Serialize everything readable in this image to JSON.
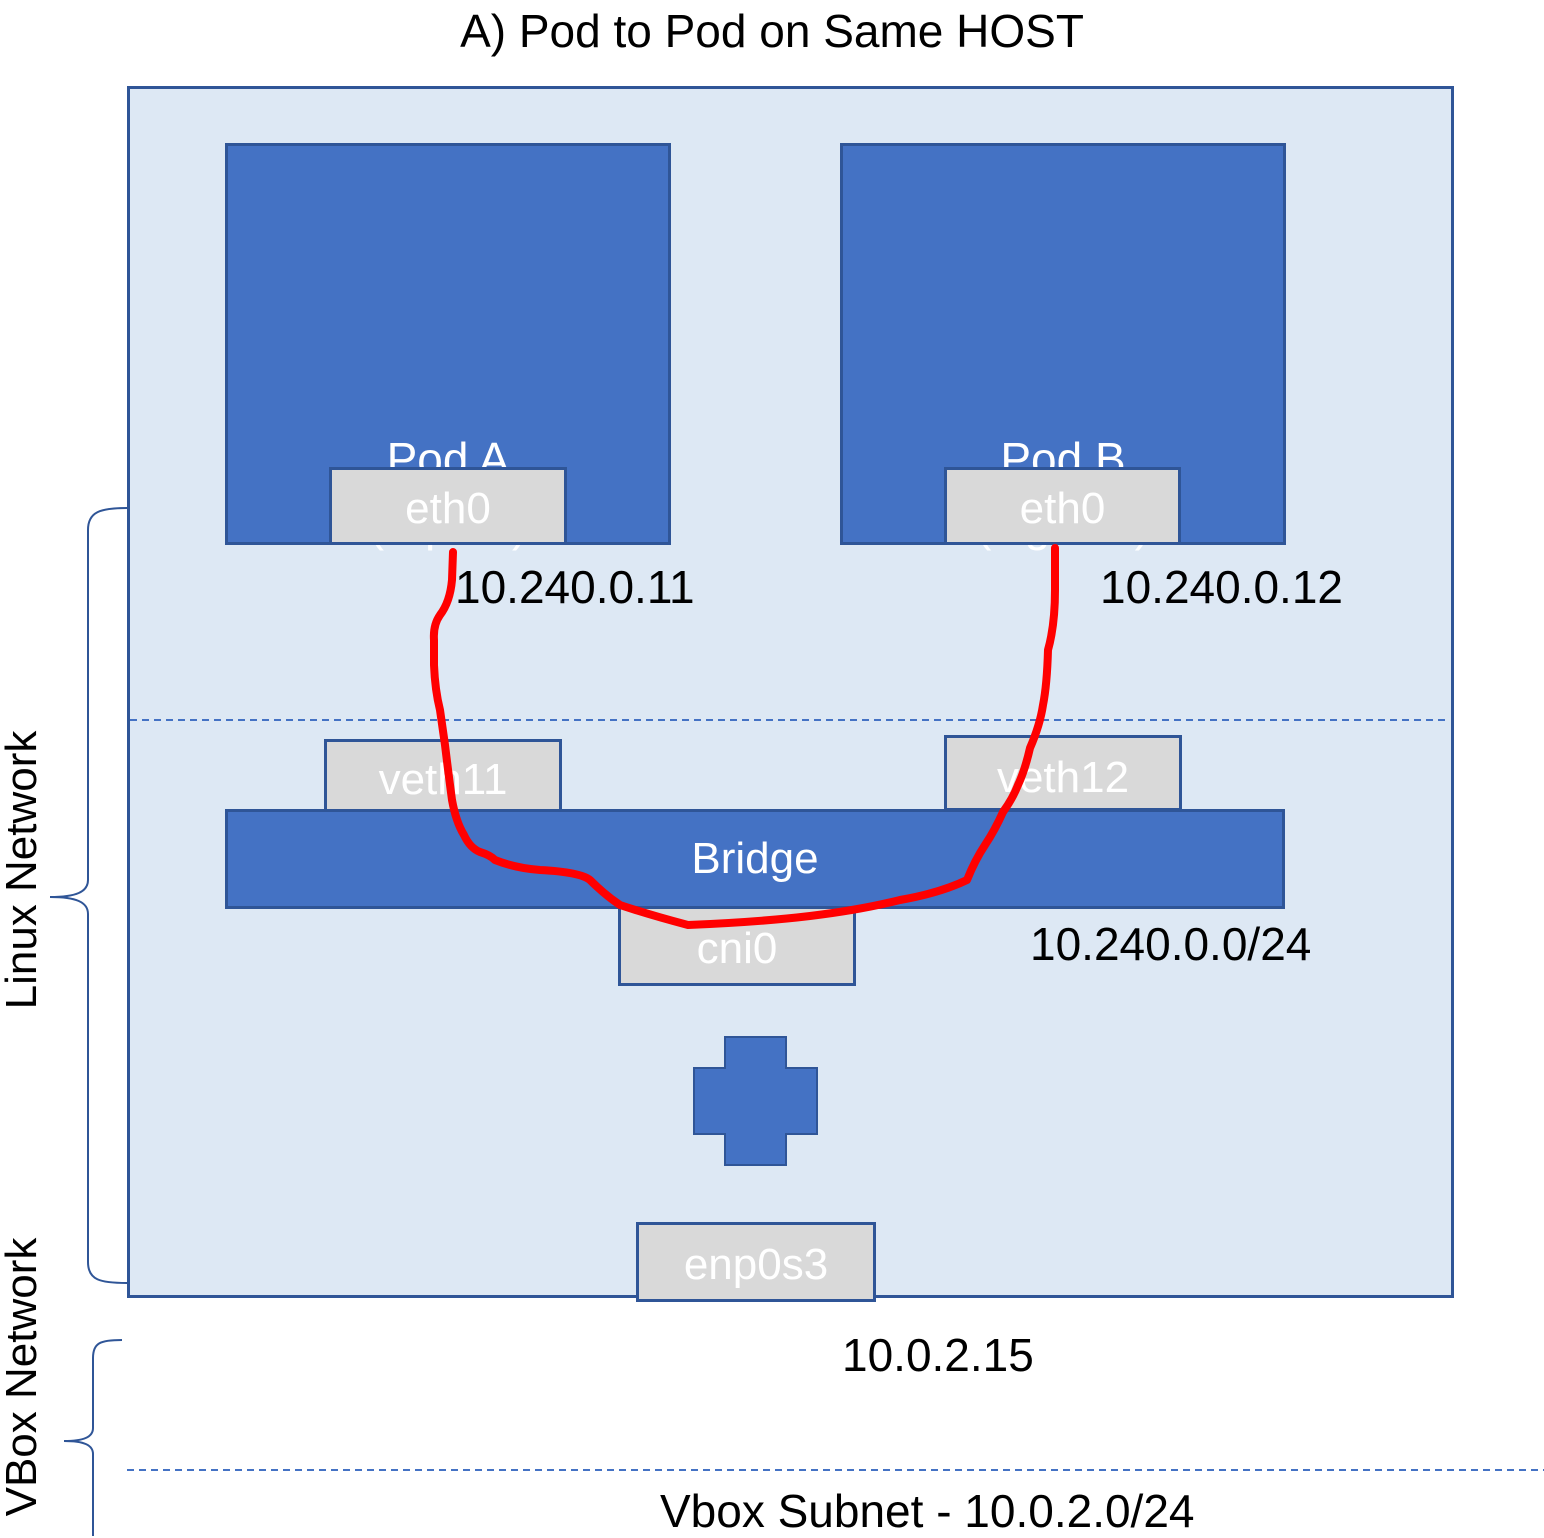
{
  "title": "A) Pod to Pod on Same HOST",
  "pods": [
    {
      "name": "Pod A",
      "image": "(Alpine)",
      "iface": "eth0",
      "ip": "10.240.0.11"
    },
    {
      "name": "Pod B",
      "image": "(Nginx1)",
      "iface": "eth0",
      "ip": "10.240.0.12"
    }
  ],
  "veths": [
    "veth11",
    "veth12"
  ],
  "bridge": {
    "label": "Bridge",
    "iface": "cni0",
    "subnet": "10.240.0.0/24"
  },
  "host_nic": {
    "iface": "enp0s3",
    "ip": "10.0.2.15"
  },
  "vbox_subnet": "Vbox Subnet - 10.0.2.0/24",
  "side_labels": {
    "linux": "Linux Network",
    "vbox": "VBox Network"
  },
  "colors": {
    "host_bg": "#dde8f4",
    "pod_fill": "#4472c4",
    "border": "#2f5597",
    "iface_fill": "#d9d9d9",
    "path": "#ff0000"
  }
}
